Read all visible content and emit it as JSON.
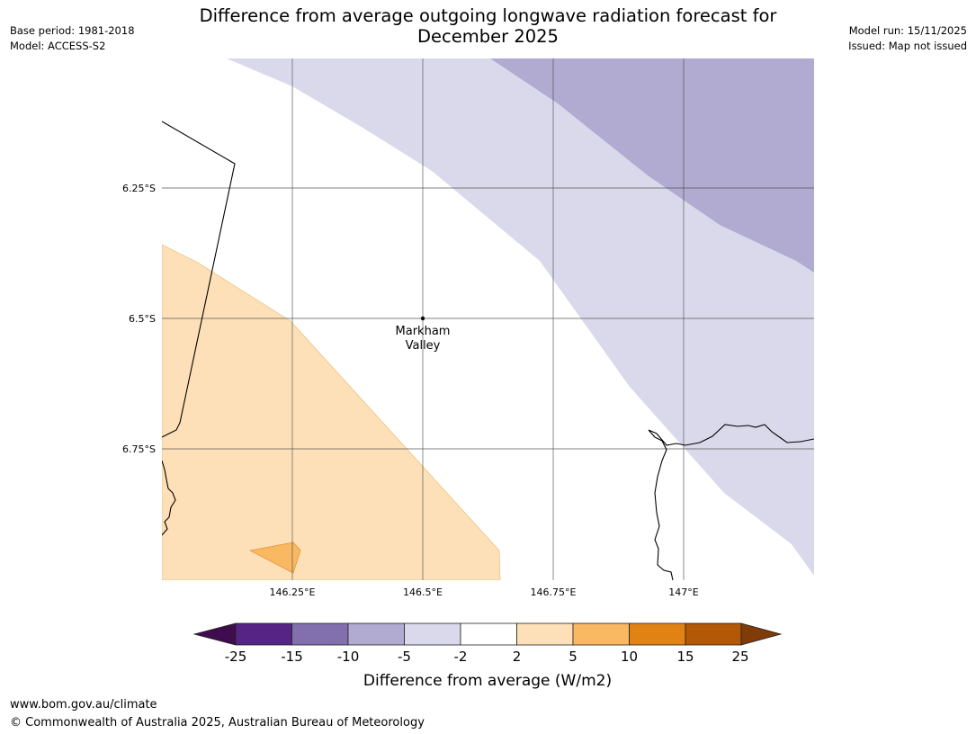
{
  "header": {
    "title_line1": "Difference from average outgoing longwave radiation forecast for",
    "title_line2": "December 2025",
    "base_period": "Base period: 1981-2018",
    "model": "Model: ACCESS-S2",
    "model_run": "Model run: 15/11/2025",
    "issued": "Issued: Map not issued"
  },
  "map": {
    "lat_labels": [
      "6.25°S",
      "6.5°S",
      "6.75°S"
    ],
    "lon_labels": [
      "146.25°E",
      "146.5°E",
      "146.75°E",
      "147°E"
    ],
    "place": {
      "line1": "Markham",
      "line2": "Valley"
    }
  },
  "legend": {
    "title": "Difference from average (W/m2)",
    "ticks": [
      "-25",
      "-15",
      "-10",
      "-5",
      "-2",
      "2",
      "5",
      "10",
      "15",
      "25"
    ],
    "colors": [
      "#3f0d4f",
      "#562485",
      "#8170ad",
      "#b1aad1",
      "#d9d9eb",
      "#ffffff",
      "#fde0b8",
      "#f9b862",
      "#e08214",
      "#b35806",
      "#7f3b08"
    ]
  },
  "footer": {
    "url": "www.bom.gov.au/climate",
    "copyright": "© Commonwealth of Australia 2025, Australian Bureau of Meteorology"
  }
}
